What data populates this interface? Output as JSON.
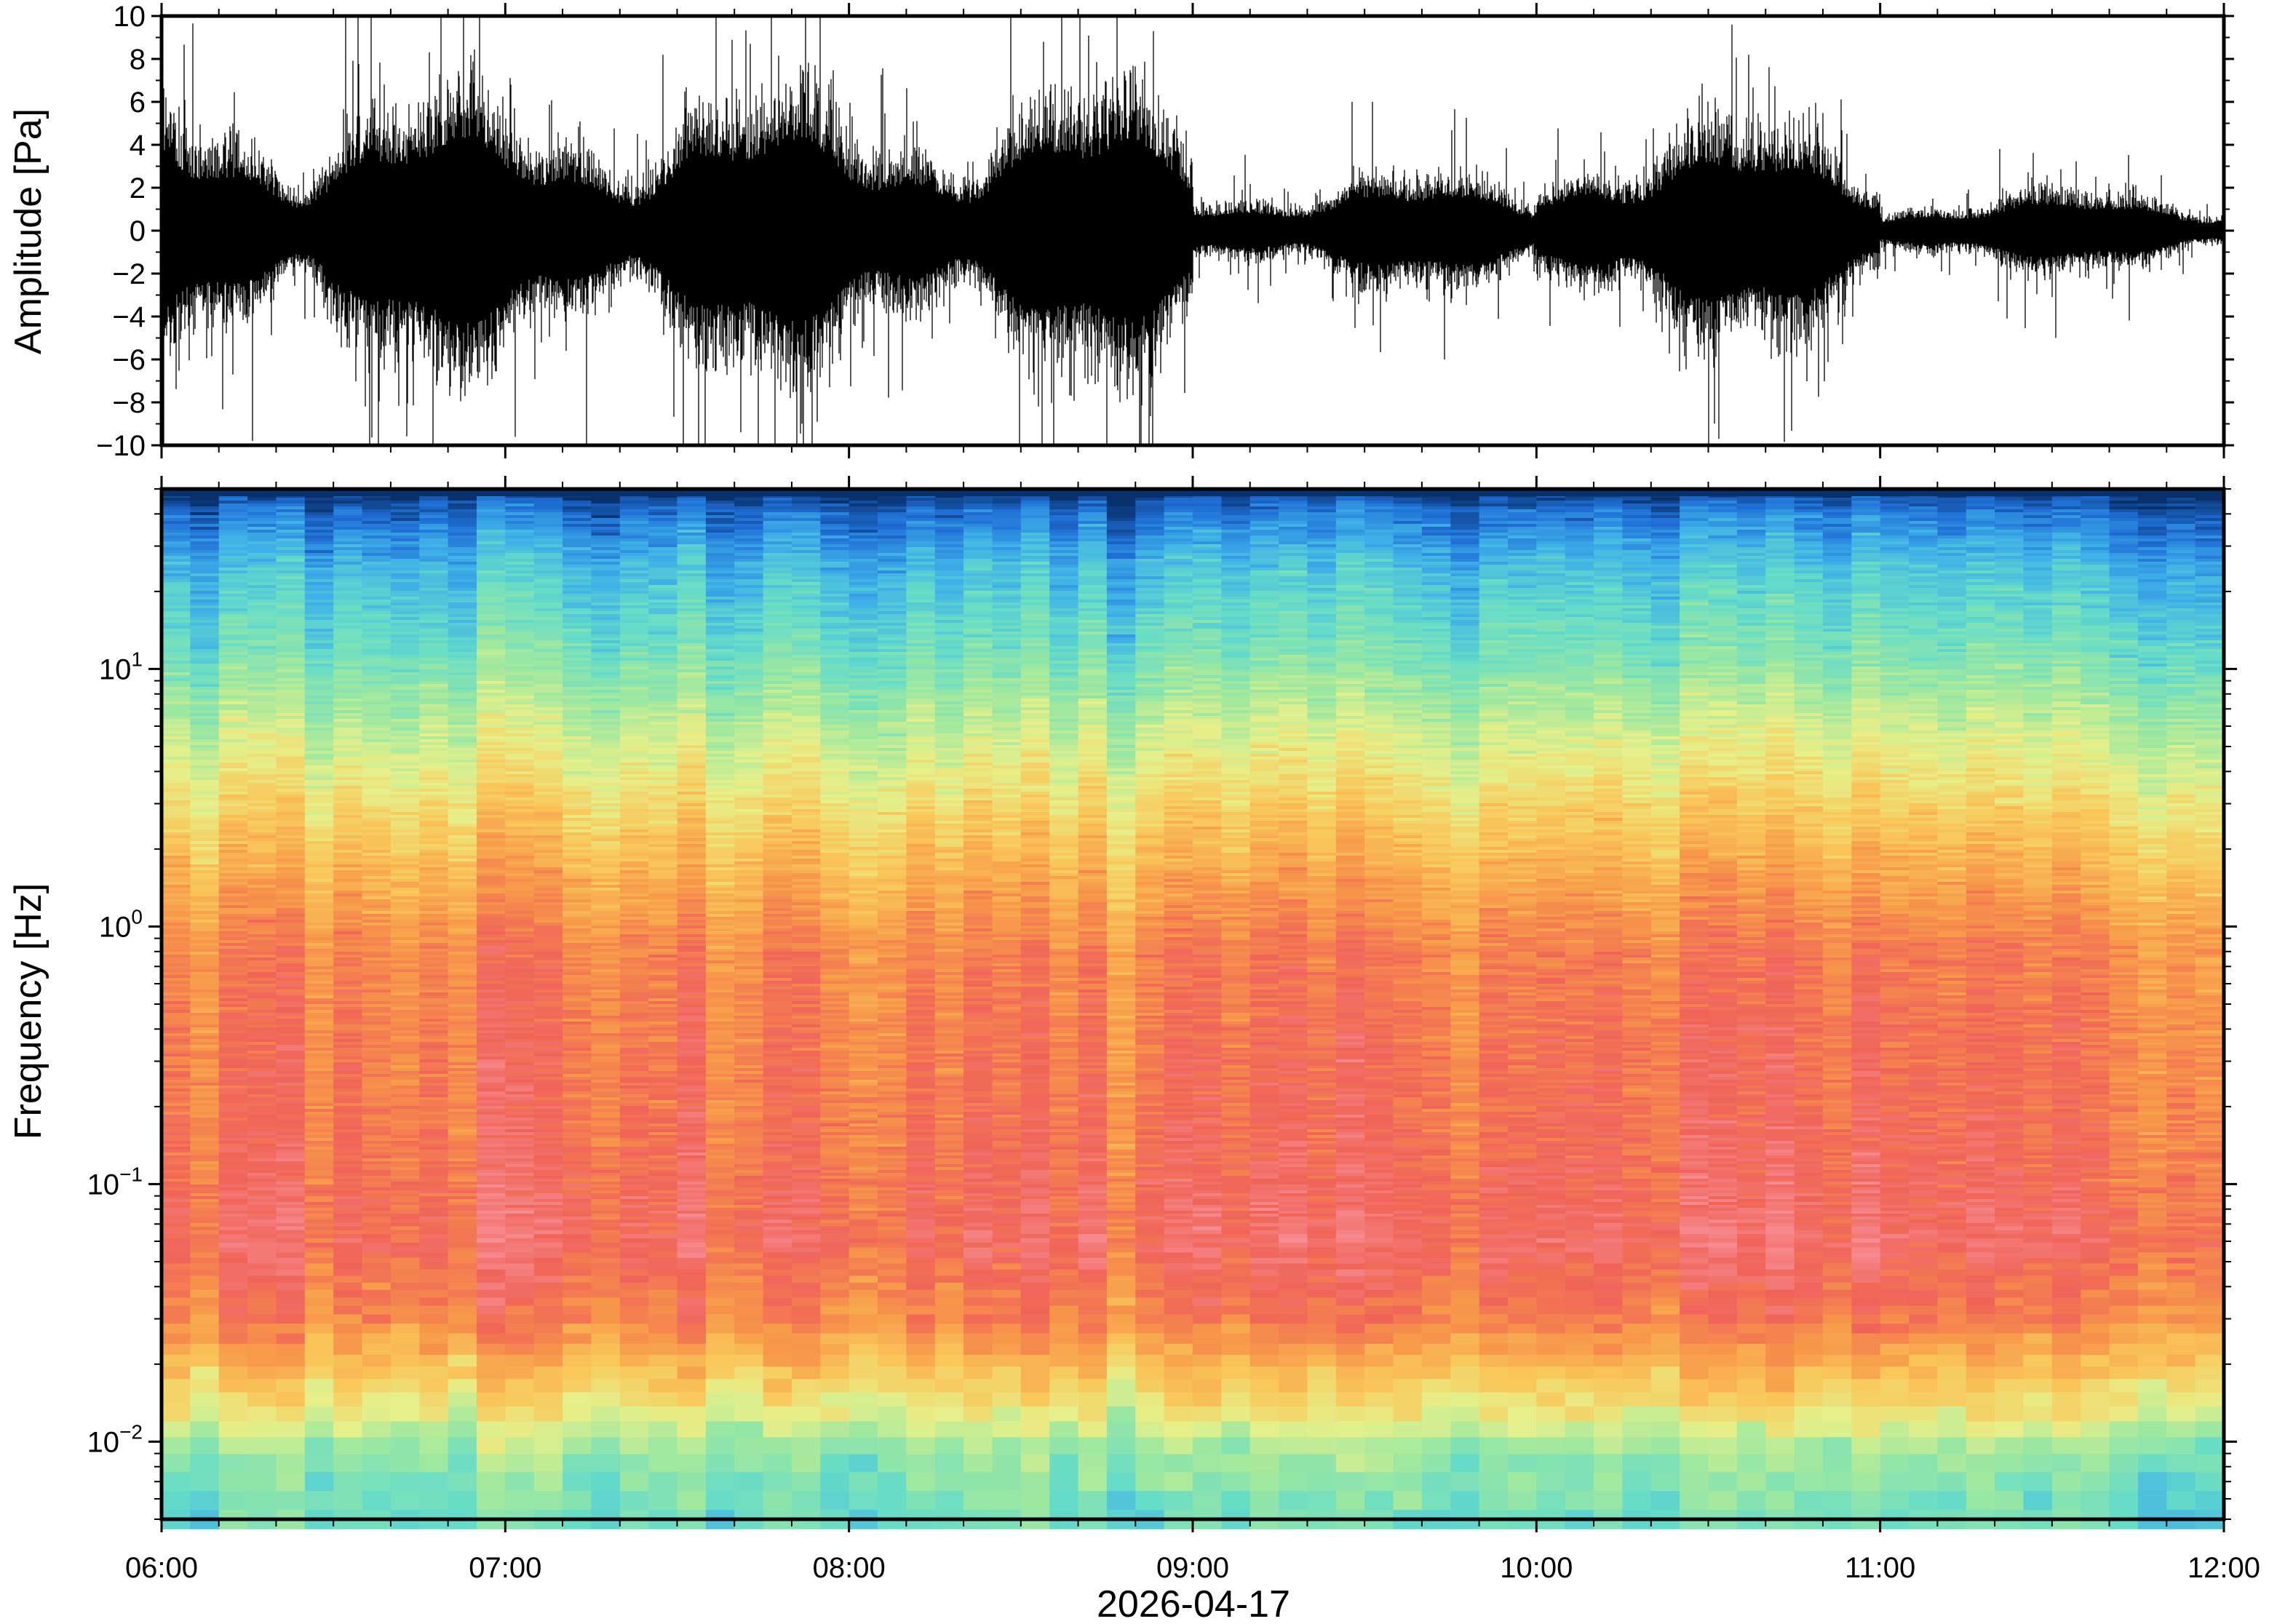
{
  "chart_data": [
    {
      "type": "line",
      "panel": "waveform",
      "ylabel": "Amplitude [Pa]",
      "xlabel": "2026-04-17",
      "ylim": [
        -10,
        10
      ],
      "yticks": [
        10,
        8,
        6,
        4,
        2,
        0,
        -2,
        -4,
        -6,
        -8,
        -10
      ],
      "ytick_labels": [
        "10",
        "8",
        "6",
        "4",
        "2",
        "0",
        "−2",
        "−4",
        "−6",
        "−8",
        "−10"
      ],
      "color": "#000000",
      "segments": [
        {
          "start": "06:00",
          "end": "09:00",
          "envelope_pa": 4.5,
          "peak_pa": 10
        },
        {
          "start": "09:00",
          "end": "10:00",
          "envelope_pa": 1.8,
          "peak_pa": 6
        },
        {
          "start": "10:00",
          "end": "11:00",
          "envelope_pa": 3.5,
          "peak_pa": 10
        },
        {
          "start": "11:00",
          "end": "12:00",
          "envelope_pa": 1.3,
          "peak_pa": 5
        }
      ]
    },
    {
      "type": "heatmap",
      "panel": "spectrogram",
      "ylabel": "Frequency [Hz]",
      "xlabel": "2026-04-17",
      "yscale": "log",
      "ylim": [
        0.005,
        50
      ],
      "yticks": [
        {
          "base": "10",
          "exp": "1",
          "value": 10
        },
        {
          "base": "10",
          "exp": "0",
          "value": 1
        },
        {
          "base": "10",
          "exp": "−1",
          "value": 0.1
        },
        {
          "base": "10",
          "exp": "−2",
          "value": 0.01
        }
      ],
      "colormap": [
        "#08306b",
        "#1f6fd6",
        "#3fb1e8",
        "#66dcc8",
        "#9ee8a0",
        "#e6f08a",
        "#f9c75a",
        "#f7984a",
        "#f06458",
        "#f78e95"
      ],
      "column_minutes": 5,
      "frequency_power_profile": [
        {
          "hz": 50,
          "level": 0.0
        },
        {
          "hz": 40,
          "level": 0.12
        },
        {
          "hz": 25,
          "level": 0.25
        },
        {
          "hz": 12,
          "level": 0.36
        },
        {
          "hz": 6,
          "level": 0.5
        },
        {
          "hz": 3,
          "level": 0.62
        },
        {
          "hz": 1.5,
          "level": 0.73
        },
        {
          "hz": 0.8,
          "level": 0.82
        },
        {
          "hz": 0.4,
          "level": 0.84
        },
        {
          "hz": 0.15,
          "level": 0.86
        },
        {
          "hz": 0.06,
          "level": 0.9
        },
        {
          "hz": 0.03,
          "level": 0.82
        },
        {
          "hz": 0.02,
          "level": 0.7
        },
        {
          "hz": 0.013,
          "level": 0.57
        },
        {
          "hz": 0.009,
          "level": 0.42
        },
        {
          "hz": 0.005,
          "level": 0.35
        }
      ]
    }
  ],
  "x_axis": {
    "title": "2026-04-17",
    "range": [
      "06:00",
      "12:00"
    ],
    "ticks": [
      "06:00",
      "07:00",
      "08:00",
      "09:00",
      "10:00",
      "11:00",
      "12:00"
    ],
    "minor_tick_minutes": 10
  }
}
